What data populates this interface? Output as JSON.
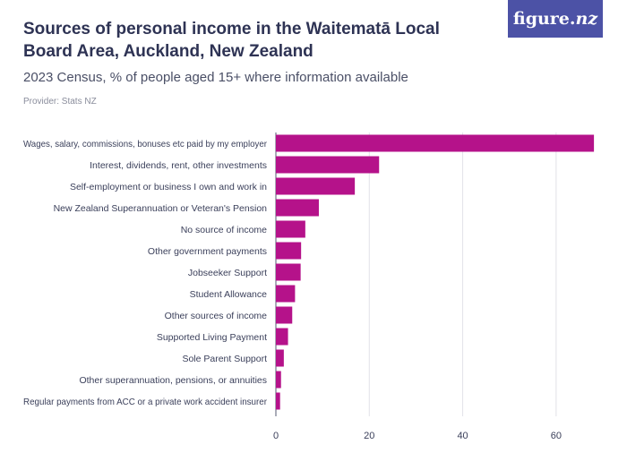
{
  "header": {
    "title": "Sources of personal income in the Waitematā Local Board Area, Auckland, New Zealand",
    "subtitle": "2023 Census, % of people aged 15+ where information available",
    "provider": "Provider: Stats NZ"
  },
  "logo": {
    "text_main": "figure.",
    "text_nz": "nz"
  },
  "colors": {
    "bar": "#b5128a",
    "grid": "#e2e2e8",
    "axis": "#555a70"
  },
  "chart_data": {
    "type": "bar",
    "orientation": "horizontal",
    "title": "Sources of personal income in the Waitematā Local Board Area, Auckland, New Zealand",
    "subtitle": "2023 Census, % of people aged 15+ where information available",
    "xlabel": "",
    "ylabel": "",
    "xlim": [
      0,
      70
    ],
    "xticks": [
      0,
      20,
      40,
      60
    ],
    "grid": true,
    "categories": [
      "Wages, salary, commissions, bonuses etc paid by my employer",
      "Interest, dividends, rent, other investments",
      "Self-employment or business I own and work in",
      "New Zealand Superannuation or Veteran's Pension",
      "No source of income",
      "Other government payments",
      "Jobseeker Support",
      "Student Allowance",
      "Other sources of income",
      "Supported Living Payment",
      "Sole Parent Support",
      "Other superannuation, pensions, or annuities",
      "Regular payments from ACC or a private work accident insurer"
    ],
    "values": [
      68.1,
      22.1,
      16.9,
      9.2,
      6.3,
      5.4,
      5.3,
      4.1,
      3.5,
      2.6,
      1.7,
      1.1,
      0.9
    ]
  }
}
